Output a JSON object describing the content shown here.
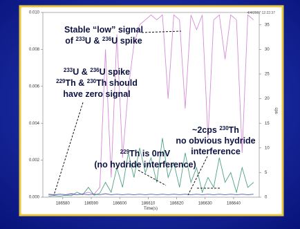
{
  "chart_data": {
    "type": "line",
    "timestamp": "4/4/2007 12:22:37",
    "xlabel": "Time(s)",
    "y2label": "cps",
    "x": [
      186575,
      186577,
      186579,
      186581,
      186583,
      186585,
      186587,
      186589,
      186591,
      186593,
      186595,
      186597,
      186599,
      186601,
      186603,
      186605,
      186607,
      186609,
      186611,
      186613,
      186615,
      186617,
      186619,
      186621,
      186623,
      186625,
      186627,
      186629,
      186631,
      186633,
      186635,
      186637,
      186639,
      186641,
      186643,
      186645,
      186647
    ],
    "xlim": [
      186573,
      186649
    ],
    "xticks": [
      186580,
      186590,
      186600,
      186610,
      186620,
      186630,
      186640
    ],
    "ylim": [
      0,
      0.01
    ],
    "yticks": [
      {
        "value": 0,
        "label": "0.000"
      },
      {
        "value": 0.002,
        "label": "0.002"
      },
      {
        "value": 0.004,
        "label": "0.004"
      },
      {
        "value": 0.006,
        "label": "0.006"
      },
      {
        "value": 0.008,
        "label": "0.008"
      },
      {
        "value": 0.01,
        "label": "0.010"
      }
    ],
    "y2lim": [
      0,
      37.5
    ],
    "y2ticks": [
      0,
      5,
      10,
      15,
      20,
      25,
      30,
      35
    ],
    "series": [
      {
        "color": "#d58cd8",
        "axis": "y2",
        "values": [
          0.5,
          0.4,
          0.6,
          0.5,
          0.8,
          0.5,
          0.7,
          1,
          0.6,
          2,
          30,
          4,
          33,
          8,
          22,
          31,
          35,
          36,
          37,
          36,
          37,
          20,
          37,
          36,
          18,
          37,
          34,
          37,
          12,
          36,
          37,
          28,
          37,
          36,
          9,
          37,
          36
        ]
      },
      {
        "color": "#4fa283",
        "axis": "y2",
        "values": [
          0.2,
          0.3,
          0.2,
          0.4,
          0.3,
          1,
          0.5,
          2,
          0.4,
          0.8,
          3,
          1,
          6,
          2,
          9,
          4,
          10,
          5,
          8,
          3,
          12,
          4,
          7,
          2,
          9,
          3,
          6,
          1,
          4,
          2,
          8,
          3,
          5,
          1,
          6,
          2,
          3
        ]
      },
      {
        "color": "#4a5aa0",
        "axis": "y2",
        "values": [
          0.6,
          0.5,
          0.6,
          0.5,
          0.6,
          0.5,
          0.6,
          0.5,
          0.6,
          0.5,
          0.7,
          0.5,
          0.6,
          0.5,
          0.6,
          0.5,
          0.6,
          0.5,
          0.6,
          0.5,
          0.6,
          0.5,
          0.6,
          0.5,
          0.6,
          0.5,
          0.6,
          0.5,
          0.6,
          0.5,
          0.6,
          0.5,
          0.6,
          0.5,
          0.6,
          0.5,
          0.6
        ]
      }
    ],
    "annotations": [
      {
        "lines": [
          [
            "Stable “low” signal"
          ],
          [
            "of ",
            {
              "sup": "233"
            },
            "U & ",
            {
              "sup": "236"
            },
            "U spike"
          ]
        ]
      },
      {
        "lines": [
          [
            {
              "sup": "233"
            },
            "U & ",
            {
              "sup": "236"
            },
            "U spike"
          ],
          [
            {
              "sup": "229"
            },
            "Th & ",
            {
              "sup": "230"
            },
            "Th should"
          ],
          [
            "have zero signal"
          ]
        ]
      },
      {
        "lines": [
          [
            "~2cps  ",
            {
              "sup": "230"
            },
            "Th"
          ],
          [
            "no obvious hydride"
          ],
          [
            "interference"
          ]
        ]
      },
      {
        "lines": [
          [
            {
              "sup": "229"
            },
            "Th is 0mV"
          ],
          [
            "(no hydride interference)"
          ]
        ]
      }
    ]
  }
}
